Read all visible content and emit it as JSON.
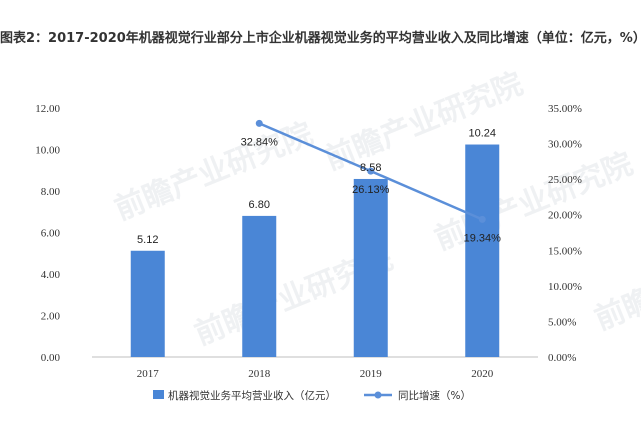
{
  "chart_data": {
    "type": "bar",
    "title": "图表2：2017-2020年机器视觉行业部分上市企业机器视觉业务的平均营业收入及同比增速（单位：亿元，%）",
    "categories": [
      "2017",
      "2018",
      "2019",
      "2020"
    ],
    "series": [
      {
        "name": "机器视觉业务平均营业收入（亿元）",
        "type": "bar",
        "axis": "left",
        "values": [
          5.12,
          6.8,
          8.58,
          10.24
        ],
        "labels": [
          "5.12",
          "6.80",
          "8.58",
          "10.24"
        ],
        "color": "#4a86d6"
      },
      {
        "name": "同比增速（%）",
        "type": "line",
        "axis": "right",
        "values": [
          null,
          32.84,
          26.13,
          19.34
        ],
        "labels": [
          "",
          "32.84%",
          "26.13%",
          "19.34%"
        ],
        "color": "#5b8fd9"
      }
    ],
    "y_left": {
      "min": 0,
      "max": 12,
      "ticks": [
        "0.00",
        "2.00",
        "4.00",
        "6.00",
        "8.00",
        "10.00",
        "12.00"
      ]
    },
    "y_right": {
      "min": 0,
      "max": 35,
      "ticks": [
        "0.00%",
        "5.00%",
        "10.00%",
        "15.00%",
        "20.00%",
        "25.00%",
        "30.00%",
        "35.00%"
      ]
    },
    "grid": false,
    "legend": "bottom"
  },
  "watermark": "前瞻产业研究院"
}
